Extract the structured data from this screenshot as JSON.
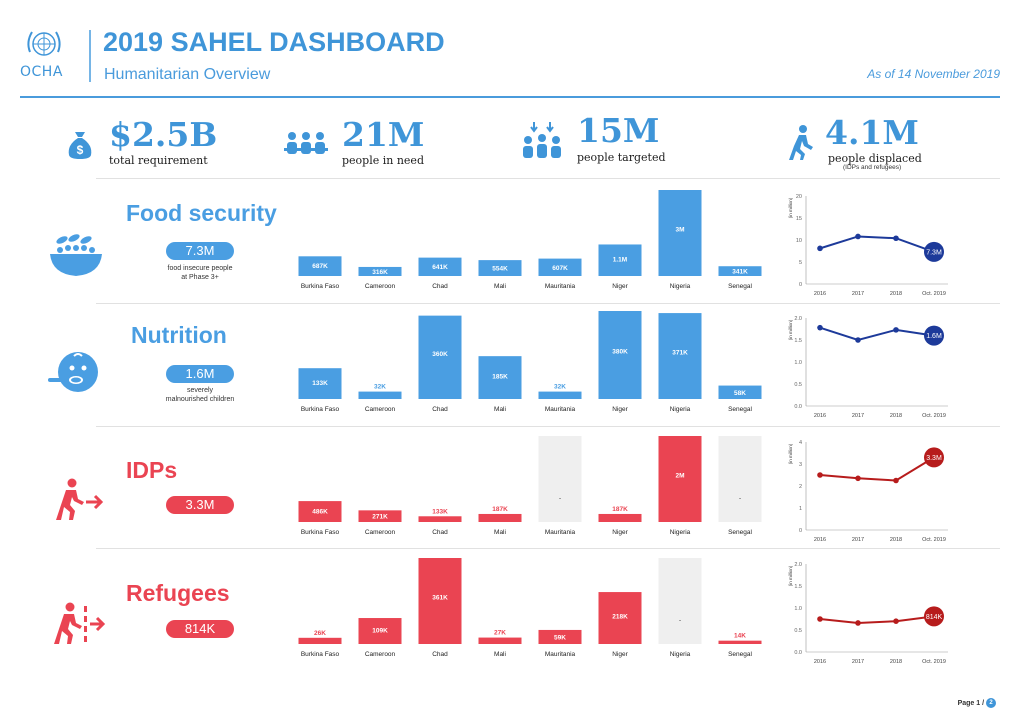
{
  "header": {
    "logo_text": "OCHA",
    "title": "2019 SAHEL DASHBOARD",
    "subtitle": "Humanitarian Overview",
    "as_of": "As of 14 November 2019"
  },
  "colors": {
    "blue": "#4a9ee2",
    "red": "#ea4452",
    "grey_bar": "#efefef",
    "line_blue": "#1d3a9a",
    "line_red": "#b71c1c"
  },
  "kpis": [
    {
      "value": "$2.5B",
      "label": "total requirement",
      "icon": "money-bag-icon"
    },
    {
      "value": "21M",
      "label": "people in need",
      "icon": "people-group-icon"
    },
    {
      "value": "15M",
      "label": "people targeted",
      "icon": "people-targeted-icon"
    },
    {
      "value": "4.1M",
      "label": "people displaced",
      "sublabel": "(IDPs and refugees)",
      "icon": "displaced-person-icon"
    }
  ],
  "sections": [
    {
      "title": "Food security",
      "pill": "7.3M",
      "desc_line1": "food insecure people",
      "desc_line2": "at Phase 3+",
      "icon": "food-bowl-icon",
      "color": "#4a9ee2"
    },
    {
      "title": "Nutrition",
      "pill": "1.6M",
      "desc_line1": "severely",
      "desc_line2": "malnourished children",
      "icon": "child-spoon-icon",
      "color": "#4a9ee2"
    },
    {
      "title": "IDPs",
      "pill": "3.3M",
      "desc_line1": "",
      "desc_line2": "",
      "icon": "idp-running-icon",
      "color": "#ea4452"
    },
    {
      "title": "Refugees",
      "pill": "814K",
      "desc_line1": "",
      "desc_line2": "",
      "icon": "refugee-border-icon",
      "color": "#ea4452"
    }
  ],
  "footer": {
    "page_label": "Page 1 /",
    "page_total": "2"
  },
  "chart_data": [
    {
      "type": "bar",
      "section": "Food security",
      "color": "#4a9ee2",
      "categories": [
        "Burkina Faso",
        "Cameroon",
        "Chad",
        "Mali",
        "Mauritania",
        "Niger",
        "Nigeria",
        "Senegal"
      ],
      "values": [
        687,
        316,
        641,
        554,
        607,
        1100,
        3000,
        341
      ],
      "labels": [
        "687K",
        "316K",
        "641K",
        "554K",
        "607K",
        "1.1M",
        "3M",
        "341K"
      ],
      "unit": "thousand people"
    },
    {
      "type": "line",
      "section": "Food security",
      "color": "#1d3a9a",
      "x": [
        "2016",
        "2017",
        "2018",
        "Oct. 2019"
      ],
      "y": [
        8.1,
        10.8,
        10.4,
        7.3
      ],
      "ylabel": "(in million)",
      "ylim": [
        0,
        20
      ],
      "yticks": [
        "0",
        "5",
        "10",
        "15",
        "20"
      ],
      "end_label": "7.3M"
    },
    {
      "type": "bar",
      "section": "Nutrition",
      "color": "#4a9ee2",
      "categories": [
        "Burkina Faso",
        "Cameroon",
        "Chad",
        "Mali",
        "Mauritania",
        "Niger",
        "Nigeria",
        "Senegal"
      ],
      "values": [
        133,
        32,
        360,
        185,
        32,
        380,
        371,
        58
      ],
      "labels": [
        "133K",
        "32K",
        "360K",
        "185K",
        "32K",
        "380K",
        "371K",
        "58K"
      ],
      "unit": "thousand children"
    },
    {
      "type": "line",
      "section": "Nutrition",
      "color": "#1d3a9a",
      "x": [
        "2016",
        "2017",
        "2018",
        "Oct. 2019"
      ],
      "y": [
        1.78,
        1.5,
        1.73,
        1.6
      ],
      "ylabel": "(in million)",
      "ylim": [
        0,
        2
      ],
      "yticks": [
        "0.0",
        "0.5",
        "1.0",
        "1.5",
        "2.0"
      ],
      "end_label": "1.6M"
    },
    {
      "type": "bar",
      "section": "IDPs",
      "color": "#ea4452",
      "categories": [
        "Burkina Faso",
        "Cameroon",
        "Chad",
        "Mali",
        "Mauritania",
        "Niger",
        "Nigeria",
        "Senegal"
      ],
      "values": [
        486,
        271,
        133,
        187,
        null,
        187,
        2000,
        null
      ],
      "labels": [
        "486K",
        "271K",
        "133K",
        "187K",
        "-",
        "187K",
        "2M",
        "-"
      ],
      "unit": "thousand people"
    },
    {
      "type": "line",
      "section": "IDPs",
      "color": "#b71c1c",
      "x": [
        "2016",
        "2017",
        "2018",
        "Oct. 2019"
      ],
      "y": [
        2.5,
        2.35,
        2.25,
        3.3
      ],
      "ylabel": "(in million)",
      "ylim": [
        0,
        4
      ],
      "yticks": [
        "0",
        "1",
        "2",
        "3",
        "4"
      ],
      "end_label": "3.3M"
    },
    {
      "type": "bar",
      "section": "Refugees",
      "color": "#ea4452",
      "categories": [
        "Burkina Faso",
        "Cameroon",
        "Chad",
        "Mali",
        "Mauritania",
        "Niger",
        "Nigeria",
        "Senegal"
      ],
      "values": [
        26,
        109,
        361,
        27,
        59,
        218,
        null,
        14
      ],
      "labels": [
        "26K",
        "109K",
        "361K",
        "27K",
        "59K",
        "218K",
        "-",
        "14K"
      ],
      "unit": "thousand people"
    },
    {
      "type": "line",
      "section": "Refugees",
      "color": "#b71c1c",
      "x": [
        "2016",
        "2017",
        "2018",
        "Oct. 2019"
      ],
      "y": [
        0.75,
        0.66,
        0.7,
        0.81
      ],
      "ylabel": "(in million)",
      "ylim": [
        0,
        2
      ],
      "yticks": [
        "0.0",
        "0.5",
        "1.0",
        "1.5",
        "2.0"
      ],
      "end_label": "814K"
    }
  ]
}
